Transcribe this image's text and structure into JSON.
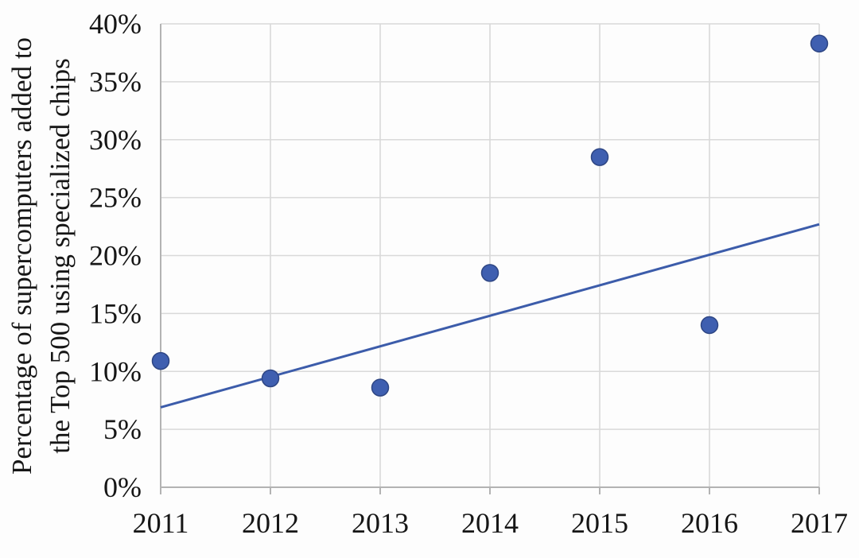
{
  "chart_data": {
    "type": "scatter",
    "title": "",
    "xlabel": "",
    "ylabel_line1": "Percentage of supercomputers added to",
    "ylabel_line2": "the Top 500 using specialized chips",
    "x": [
      2011,
      2012,
      2013,
      2014,
      2015,
      2016,
      2017
    ],
    "xtick_labels": [
      "2011",
      "2012",
      "2013",
      "2014",
      "2015",
      "2016",
      "2017"
    ],
    "values": [
      10.9,
      9.4,
      8.6,
      18.5,
      28.5,
      14.0,
      38.3
    ],
    "series_name": "Percentage of supercomputers using specialized chips",
    "trendline": {
      "x_start": 2011,
      "y_start": 6.9,
      "x_end": 2017,
      "y_end": 22.7
    },
    "xlim": [
      2011,
      2017
    ],
    "ylim": [
      0,
      40
    ],
    "ytick_step": 5,
    "ytick_labels": [
      "0%",
      "5%",
      "10%",
      "15%",
      "20%",
      "25%",
      "30%",
      "35%",
      "40%"
    ],
    "grid": true,
    "legend": "none",
    "colors": {
      "point_fill": "#3f5fb0",
      "point_stroke": "#2e4684",
      "trend_line": "#3c5caa",
      "gridline": "#d9d9d9",
      "axis_line": "#b3b3b3",
      "text": "#161616",
      "background": "#fdfdfd"
    }
  }
}
